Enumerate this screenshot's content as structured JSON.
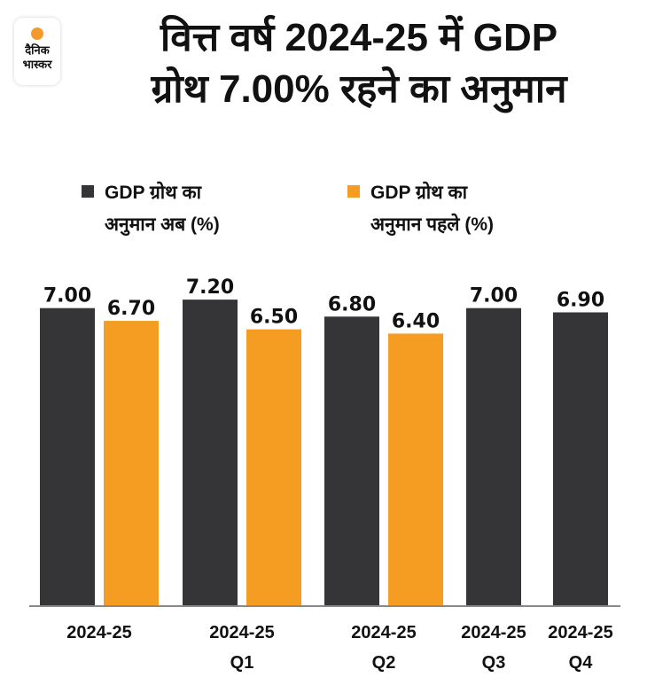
{
  "brand": {
    "line1": "दैनिक",
    "line2": "भास्कर"
  },
  "chart_data": {
    "type": "bar",
    "title_lines": [
      "वित्त वर्ष 2024-25 में GDP",
      "ग्रोथ 7.00% रहने का अनुमान"
    ],
    "xlabel": "",
    "ylabel": "",
    "ylim": [
      0,
      7.2
    ],
    "grid": false,
    "legend_position": "top",
    "categories": [
      [
        "2024-25",
        ""
      ],
      [
        "2024-25",
        "Q1"
      ],
      [
        "2024-25",
        "Q2"
      ],
      [
        "2024-25",
        "Q3"
      ],
      [
        "2024-25",
        "Q4"
      ]
    ],
    "series": [
      {
        "name": "GDP ग्रोथ का अनुमान अब (%)",
        "legend_lines": [
          "GDP ग्रोथ का",
          "अनुमान अब (%)"
        ],
        "color": "#353436",
        "values": [
          7.0,
          7.2,
          6.8,
          7.0,
          6.9
        ],
        "labels": [
          "7.00",
          "7.20",
          "6.80",
          "7.00",
          "6.90"
        ]
      },
      {
        "name": "GDP ग्रोथ का अनुमान पहले (%)",
        "legend_lines": [
          "GDP ग्रोथ का",
          "अनुमान पहले (%)"
        ],
        "color": "#f59d22",
        "values": [
          6.7,
          6.5,
          6.4,
          null,
          null
        ],
        "labels": [
          "6.70",
          "6.50",
          "6.40",
          "",
          ""
        ]
      }
    ],
    "axis_color": "#888888"
  }
}
